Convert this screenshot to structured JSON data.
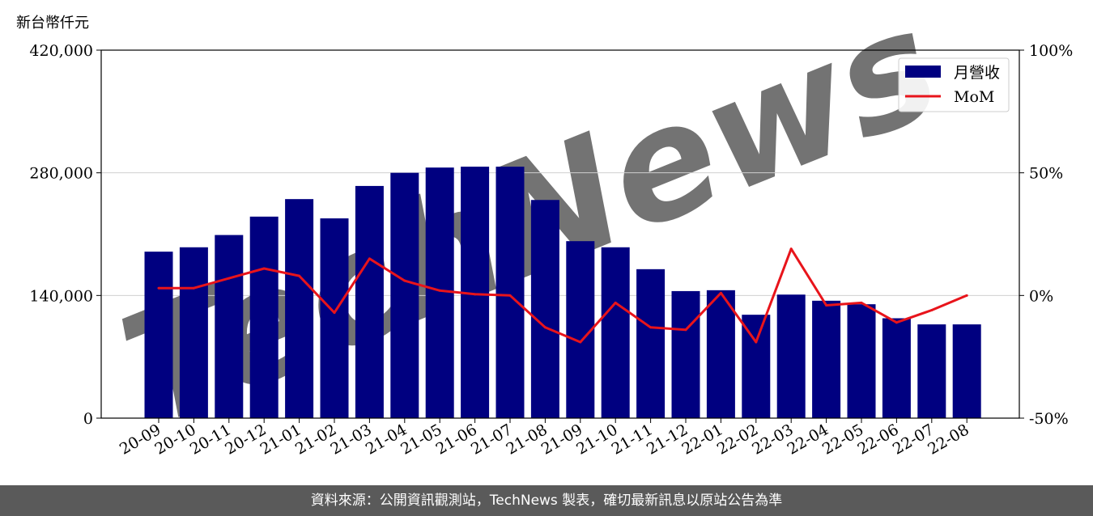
{
  "unit_label": "新台幣仟元",
  "footer_text": "資料來源：公開資訊觀測站，TechNews 製表，確切最新訊息以原站公告為準",
  "watermark": "TechNews",
  "colors": {
    "bar": "#000080",
    "line": "#e8141b",
    "footer_bg": "#5a5a5a",
    "watermark": "#f5c7c9"
  },
  "chart_data": {
    "type": "bar",
    "categories": [
      "20-09",
      "20-10",
      "20-11",
      "20-12",
      "21-01",
      "21-02",
      "21-03",
      "21-04",
      "21-05",
      "21-06",
      "21-07",
      "21-08",
      "21-09",
      "21-10",
      "21-11",
      "21-12",
      "22-01",
      "22-02",
      "22-03",
      "22-04",
      "22-05",
      "22-06",
      "22-07",
      "22-08"
    ],
    "series": [
      {
        "name": "月營收",
        "type": "bar",
        "axis": "left",
        "values": [
          190000,
          195000,
          209000,
          230000,
          250000,
          228000,
          265000,
          280000,
          286000,
          287000,
          287000,
          249000,
          202000,
          195000,
          170000,
          145000,
          146000,
          118000,
          141000,
          134000,
          130000,
          114000,
          107000,
          107000
        ]
      },
      {
        "name": "MoM",
        "type": "line",
        "axis": "right",
        "values": [
          3,
          3,
          7,
          11,
          8,
          -7,
          15,
          6,
          2,
          0.5,
          0,
          -13,
          -19,
          -3,
          -13,
          -14,
          1,
          -19,
          19,
          -4,
          -3,
          -11,
          -6,
          0
        ]
      }
    ],
    "y_left": {
      "ylim": [
        0,
        420000
      ],
      "ticks": [
        "0",
        "140,000",
        "280,000",
        "420,000"
      ],
      "tick_values": [
        0,
        140000,
        280000,
        420000
      ]
    },
    "y_right": {
      "ylim": [
        -50,
        100
      ],
      "ticks": [
        "-50%",
        "0%",
        "50%",
        "100%"
      ],
      "tick_values": [
        -50,
        0,
        50,
        100
      ]
    },
    "grid": "horizontal",
    "legend_position": "top-right"
  }
}
